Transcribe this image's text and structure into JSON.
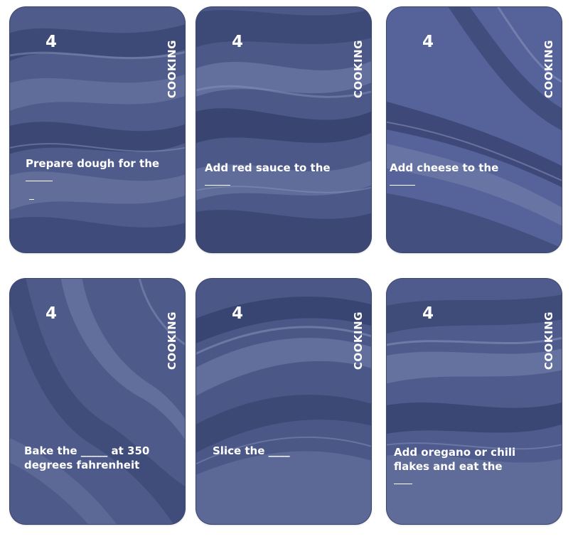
{
  "cards": [
    {
      "number": "4",
      "category": "COOKING",
      "prompt": "Prepare dough for the"
    },
    {
      "number": "4",
      "category": "COOKING",
      "prompt": "Add red sauce to the"
    },
    {
      "number": "4",
      "category": "COOKING",
      "prompt": "Add cheese to the"
    },
    {
      "number": "4",
      "category": "COOKING",
      "prompt": "Bake the _____ at 350 degrees fahrenheit"
    },
    {
      "number": "4",
      "category": "COOKING",
      "prompt": "Slice the ____"
    },
    {
      "number": "4",
      "category": "COOKING",
      "prompt": "Add oregano or chili flakes and eat the"
    }
  ],
  "colors": {
    "card_base": "#4b5888",
    "card_dark": "#323d68",
    "card_light": "#7581ab",
    "text": "#ffffff"
  }
}
